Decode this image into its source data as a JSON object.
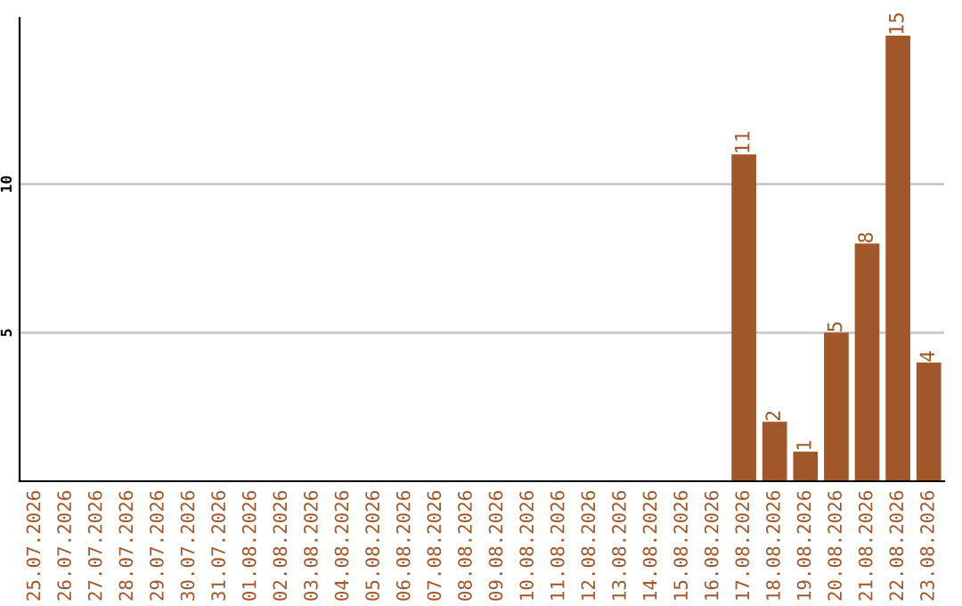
{
  "chart_data": {
    "type": "bar",
    "categories": [
      "25.07.2026",
      "26.07.2026",
      "27.07.2026",
      "28.07.2026",
      "29.07.2026",
      "30.07.2026",
      "31.07.2026",
      "01.08.2026",
      "02.08.2026",
      "03.08.2026",
      "04.08.2026",
      "05.08.2026",
      "06.08.2026",
      "07.08.2026",
      "08.08.2026",
      "09.08.2026",
      "10.08.2026",
      "11.08.2026",
      "12.08.2026",
      "13.08.2026",
      "14.08.2026",
      "15.08.2026",
      "16.08.2026",
      "17.08.2026",
      "18.08.2026",
      "19.08.2026",
      "20.08.2026",
      "21.08.2026",
      "22.08.2026",
      "23.08.2026"
    ],
    "values": [
      0,
      0,
      0,
      0,
      0,
      0,
      0,
      0,
      0,
      0,
      0,
      0,
      0,
      0,
      0,
      0,
      0,
      0,
      0,
      0,
      0,
      0,
      0,
      11,
      2,
      1,
      5,
      8,
      15,
      4
    ],
    "value_labels": [
      null,
      null,
      null,
      null,
      null,
      null,
      null,
      null,
      null,
      null,
      null,
      null,
      null,
      null,
      null,
      null,
      null,
      null,
      null,
      null,
      null,
      null,
      null,
      "11",
      "2",
      "1",
      "5",
      "8",
      "15",
      "4"
    ],
    "color": "#a0572a",
    "ylim": [
      0,
      15.6
    ],
    "yticks": [
      5,
      10
    ],
    "grid": "y"
  }
}
